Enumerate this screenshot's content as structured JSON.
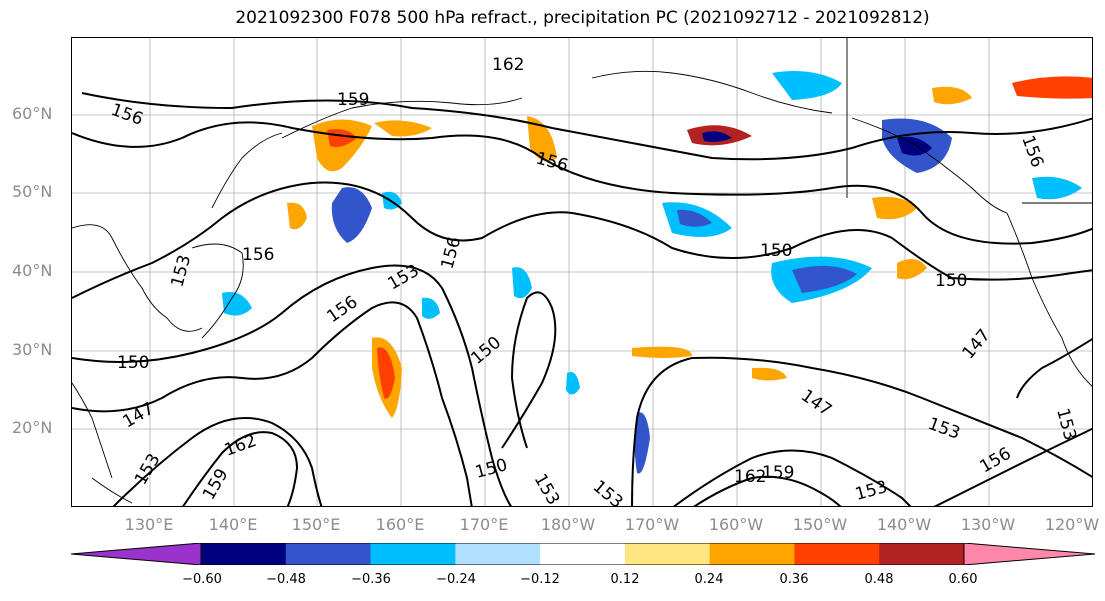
{
  "title": "2021092300 F078 500 hPa refract., precipitation PC (2021092712 - 2021092812)",
  "latitude_labels": [
    "60°N",
    "50°N",
    "40°N",
    "30°N",
    "20°N"
  ],
  "longitude_labels": [
    "130°E",
    "140°E",
    "150°E",
    "160°E",
    "170°E",
    "180°W",
    "170°W",
    "160°W",
    "150°W",
    "140°W",
    "130°W",
    "120°W"
  ],
  "contour_labels": [
    "162",
    "159",
    "156",
    "156",
    "156",
    "156",
    "153",
    "156",
    "156",
    "150",
    "150",
    "150",
    "153",
    "150",
    "147",
    "162",
    "159",
    "153",
    "150",
    "153",
    "153",
    "162",
    "159",
    "147",
    "153",
    "153",
    "156",
    "147",
    "153"
  ],
  "colorbar": {
    "colors": [
      "#9933cc",
      "#000080",
      "#3355cc",
      "#00bfff",
      "#b0e0ff",
      "#ffffff",
      "#ffe680",
      "#ffa500",
      "#ff4000",
      "#b22222",
      "#ff88aa"
    ],
    "ticks": [
      "−0.60",
      "−0.48",
      "−0.36",
      "−0.24",
      "−0.12",
      "0.12",
      "0.24",
      "0.36",
      "0.48",
      "0.60"
    ]
  }
}
